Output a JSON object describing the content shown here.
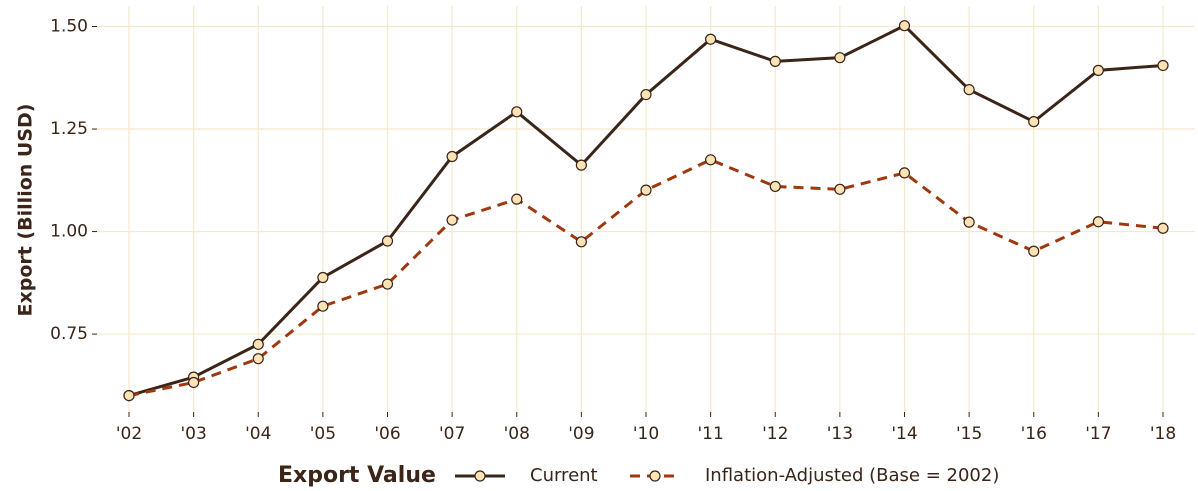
{
  "chart_data": {
    "type": "line",
    "y_label": "Export (Billion USD)",
    "legend_title": "Export Value",
    "legend_position": "bottom",
    "grid": true,
    "categories": [
      "'02",
      "'03",
      "'04",
      "'05",
      "'06",
      "'07",
      "'08",
      "'09",
      "'10",
      "'11",
      "'12",
      "'13",
      "'14",
      "'15",
      "'16",
      "'17",
      "'18"
    ],
    "series": [
      {
        "name": "Current",
        "color": "#3b2418",
        "dash": "solid",
        "values": [
          0.6,
          0.645,
          0.725,
          0.888,
          0.977,
          1.183,
          1.292,
          1.162,
          1.334,
          1.469,
          1.415,
          1.424,
          1.502,
          1.346,
          1.268,
          1.393,
          1.405
        ]
      },
      {
        "name": "Inflation-Adjusted (Base = 2002)",
        "color": "#a0380e",
        "dash": "dashed",
        "values": [
          0.6,
          0.632,
          0.69,
          0.818,
          0.872,
          1.028,
          1.079,
          0.975,
          1.101,
          1.175,
          1.11,
          1.103,
          1.143,
          1.023,
          0.952,
          1.024,
          1.008
        ]
      }
    ],
    "marker_fill": "#fbe3b5",
    "ylim": [
      0.56,
      1.55
    ],
    "yticks": [
      0.75,
      {
        "value": 1.0,
        "label": "1.00"
      },
      1.25,
      {
        "value": 1.5,
        "label": "1.50"
      }
    ]
  }
}
